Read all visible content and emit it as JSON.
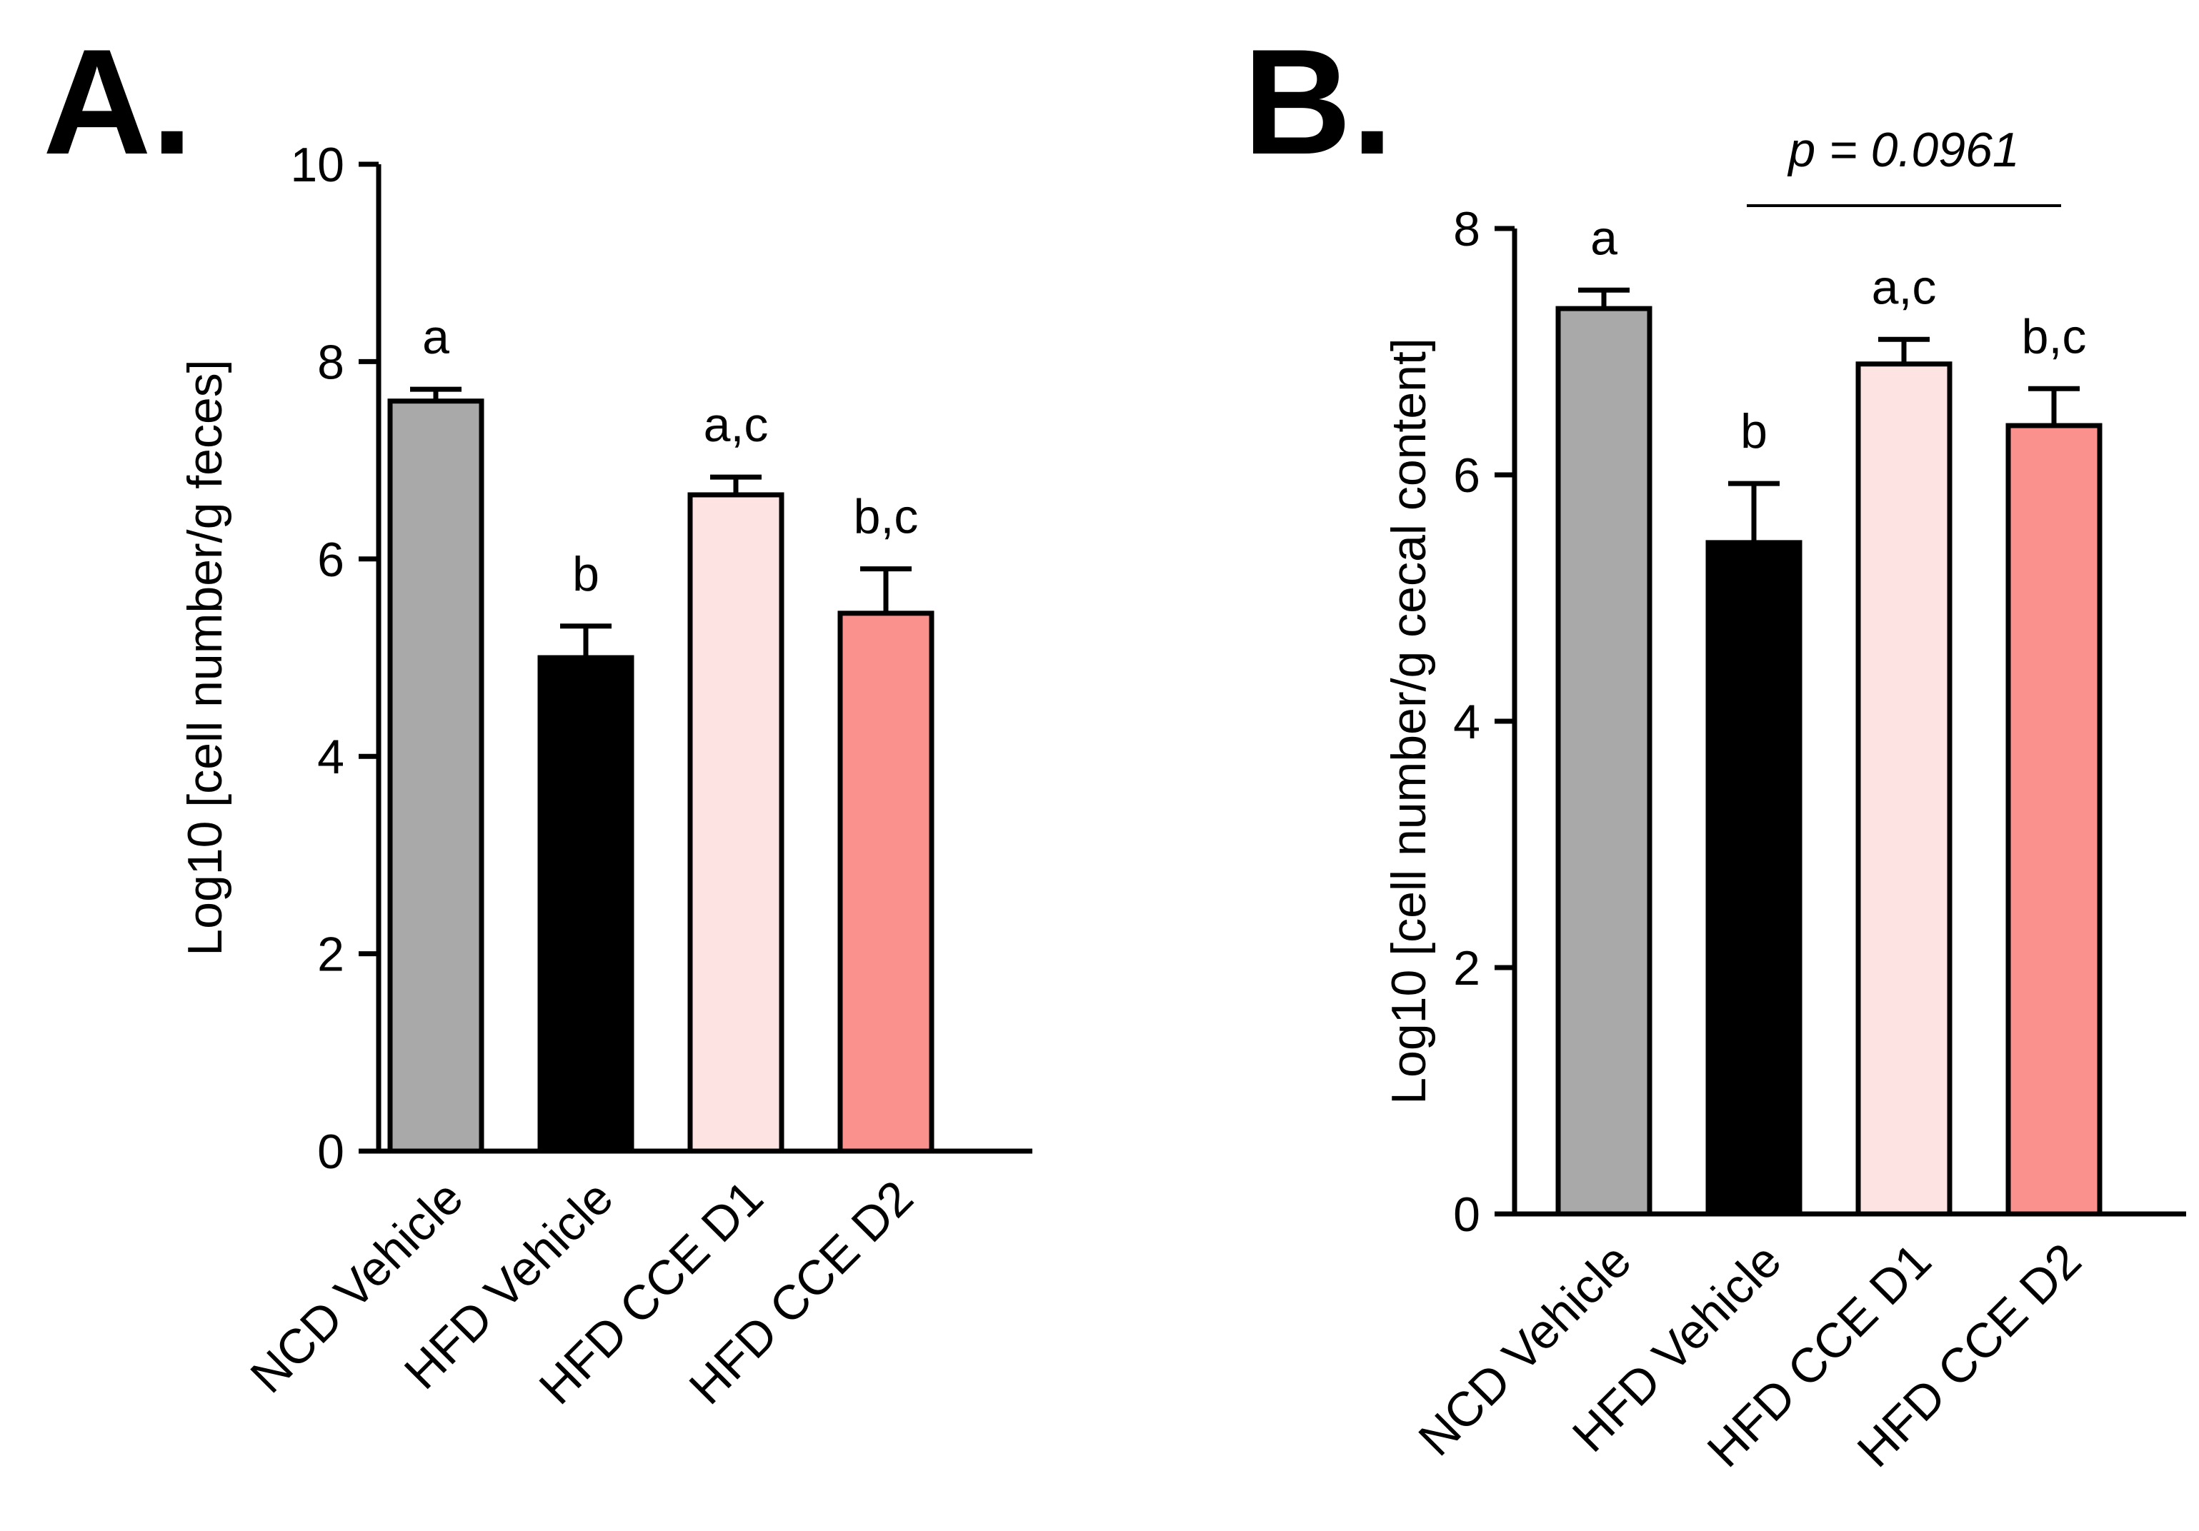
{
  "chart_data": [
    {
      "panel": "A.",
      "type": "bar",
      "categories": [
        "NCD Vehicle",
        "HFD Vehicle",
        "HFD CCE D1",
        "HFD CCE D2"
      ],
      "values": [
        7.6,
        5.0,
        6.65,
        5.45
      ],
      "errors": [
        0.12,
        0.32,
        0.18,
        0.45
      ],
      "significance": [
        "a",
        "b",
        "a,c",
        "b,c"
      ],
      "colors": [
        "#a9a9a9",
        "#000000",
        "#fde4e3",
        "#fb918d"
      ],
      "ylabel": "Log10 [cell number/g feces]",
      "xlabel": "",
      "ylim": [
        0,
        10
      ],
      "yticks": [
        0,
        2,
        4,
        6,
        8,
        10
      ]
    },
    {
      "panel": "B.",
      "type": "bar",
      "categories": [
        "NCD Vehicle",
        "HFD Vehicle",
        "HFD CCE D1",
        "HFD CCE D2"
      ],
      "values": [
        7.35,
        5.45,
        6.9,
        6.4
      ],
      "errors": [
        0.15,
        0.48,
        0.2,
        0.3
      ],
      "significance": [
        "a",
        "b",
        "a,c",
        "b,c"
      ],
      "colors": [
        "#a9a9a9",
        "#000000",
        "#fde4e3",
        "#fb918d"
      ],
      "ylabel": "Log10 [cell number/g cecal content]",
      "xlabel": "",
      "ylim": [
        0,
        8
      ],
      "yticks": [
        0,
        2,
        4,
        6,
        8
      ],
      "bracket": {
        "from": "HFD Vehicle",
        "to": "HFD CCE D2",
        "label": "p = 0.0961"
      }
    }
  ]
}
